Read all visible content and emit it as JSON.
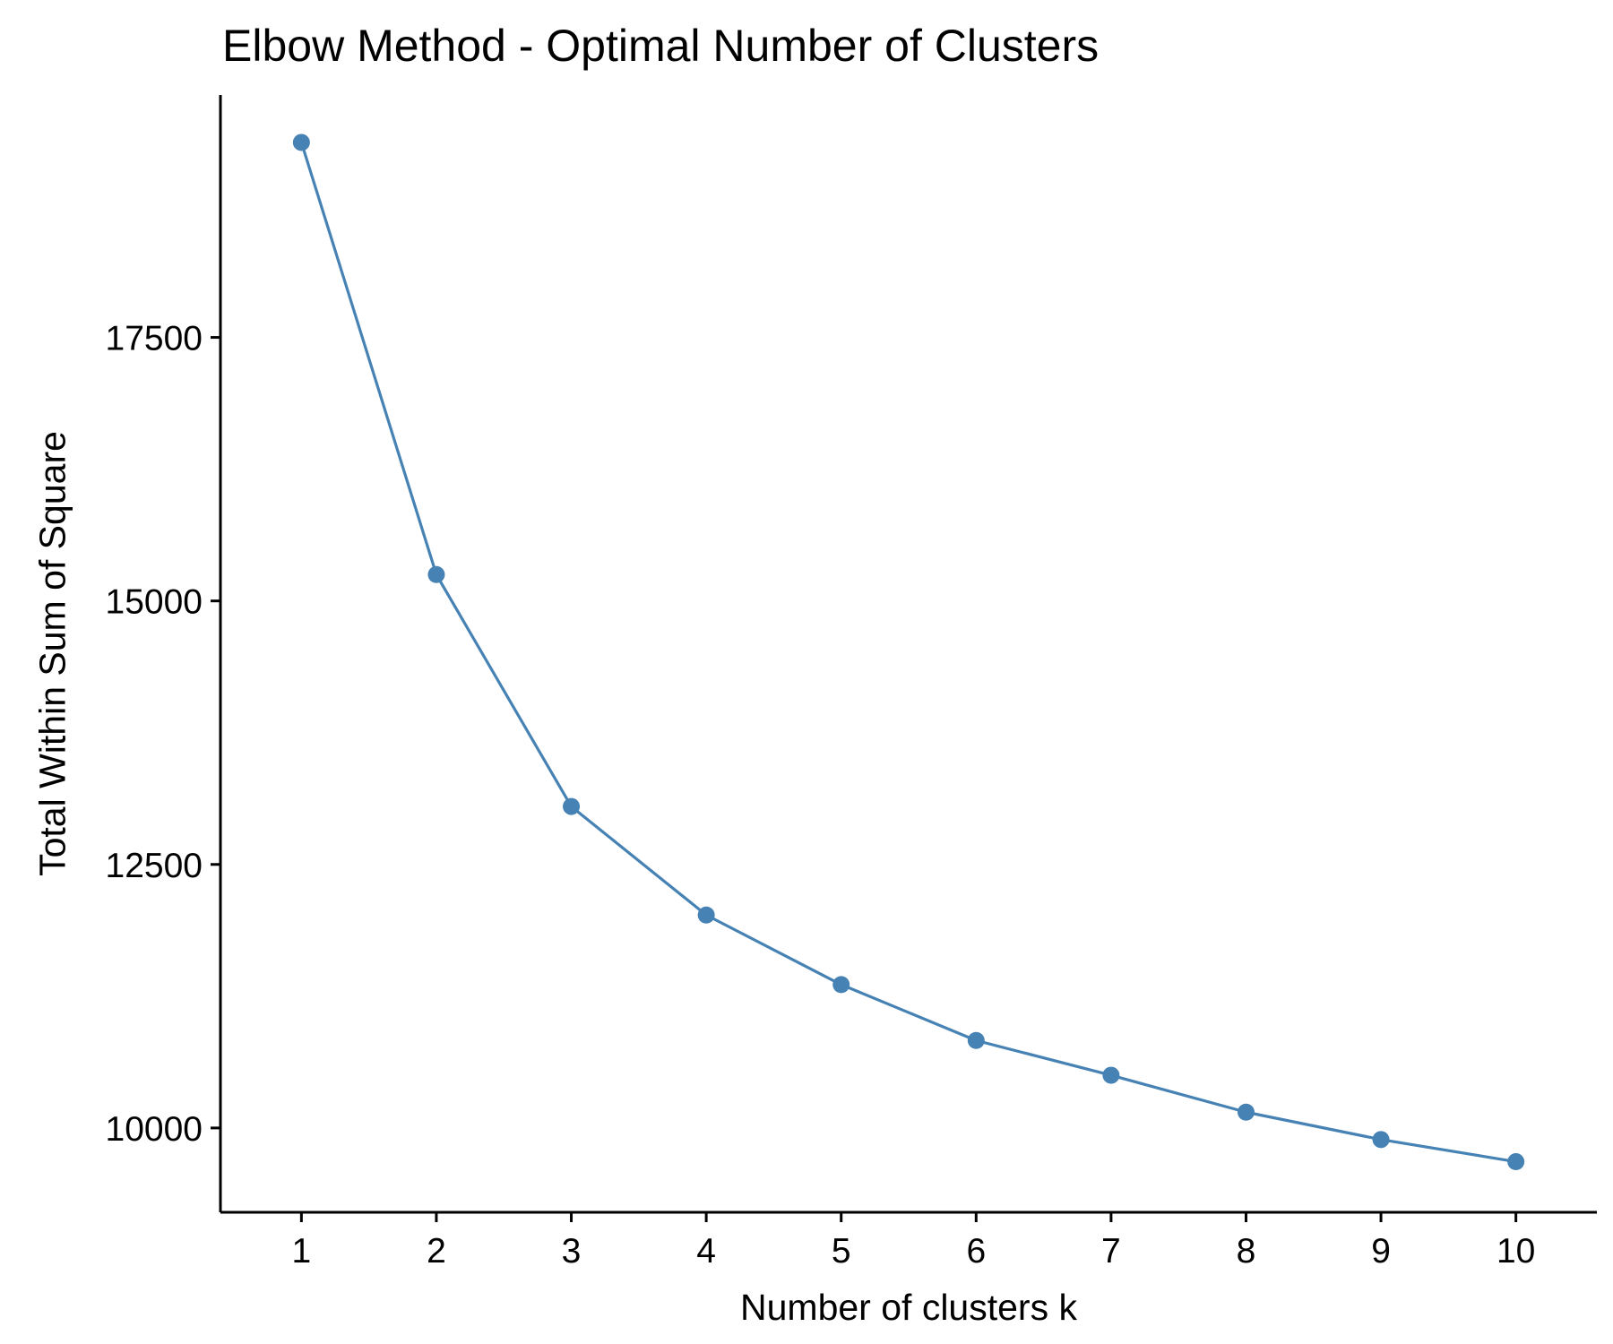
{
  "chart_data": {
    "type": "line",
    "title": "Elbow Method - Optimal Number of Clusters",
    "xlabel": "Number of clusters k",
    "ylabel": "Total Within Sum of Square",
    "x": [
      1,
      2,
      3,
      4,
      5,
      6,
      7,
      8,
      9,
      10
    ],
    "x_ticks": [
      "1",
      "2",
      "3",
      "4",
      "5",
      "6",
      "7",
      "8",
      "9",
      "10"
    ],
    "xlim": [
      0.4,
      10.6
    ],
    "y_ticks": [
      10000,
      12500,
      15000,
      17500
    ],
    "y_tick_labels": [
      "10000",
      "12500",
      "15000",
      "17500"
    ],
    "ylim": [
      9200,
      19800
    ],
    "series": [
      {
        "values": [
          19350,
          15250,
          13050,
          12020,
          11360,
          10830,
          10500,
          10150,
          9890,
          9680
        ],
        "color": "#4682B4"
      }
    ],
    "grid": false,
    "legend": "none"
  }
}
